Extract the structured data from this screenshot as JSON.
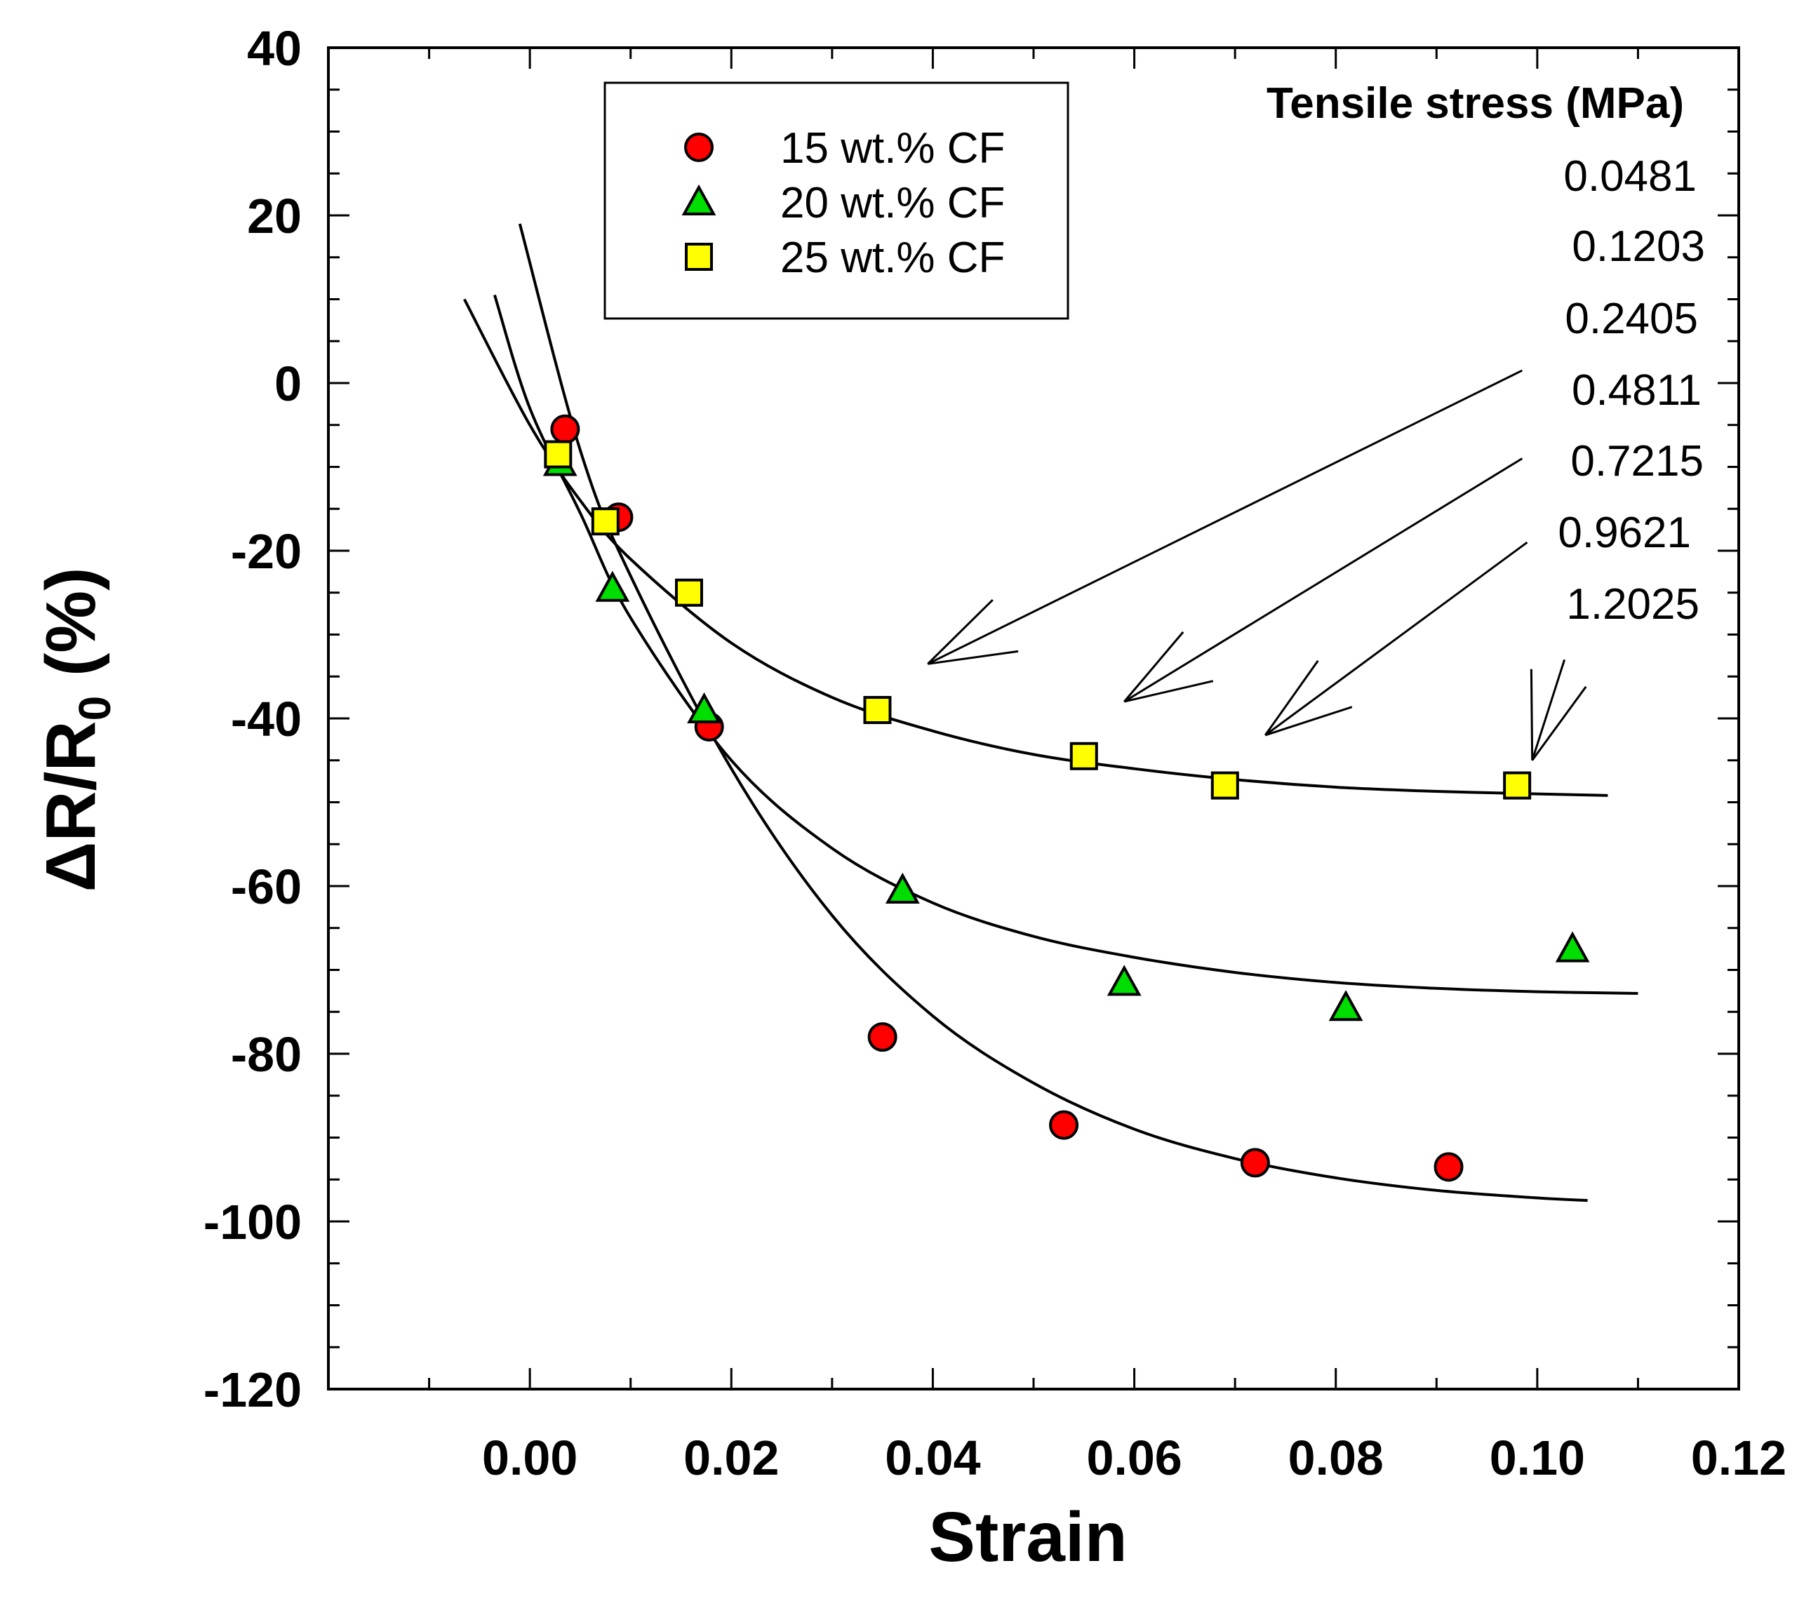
{
  "chart_data": {
    "type": "scatter",
    "xlabel": "Strain",
    "ylabel_main": "ΔR/R",
    "ylabel_sub": "0",
    "ylabel_tail": " (%)",
    "xlim": [
      -0.02,
      0.12
    ],
    "ylim": [
      -120,
      40
    ],
    "x_ticks": [
      "0.00",
      "0.02",
      "0.04",
      "0.06",
      "0.08",
      "0.10",
      "0.12"
    ],
    "y_ticks": [
      "40",
      "20",
      "0",
      "-20",
      "-40",
      "-60",
      "-80",
      "-100",
      "-120"
    ],
    "legend_position": "top-center",
    "series": [
      {
        "name": "15 wt.% CF",
        "marker": "circle",
        "color": "#ff0000",
        "points": [
          [
            0.0035,
            -5.5
          ],
          [
            0.0088,
            -16
          ],
          [
            0.0178,
            -41
          ],
          [
            0.035,
            -78
          ],
          [
            0.053,
            -88.5
          ],
          [
            0.072,
            -93
          ],
          [
            0.0912,
            -93.5
          ]
        ],
        "fit": [
          [
            -0.001,
            19
          ],
          [
            0.005,
            -8
          ],
          [
            0.01,
            -23
          ],
          [
            0.02,
            -46
          ],
          [
            0.03,
            -63.5
          ],
          [
            0.04,
            -75.5
          ],
          [
            0.05,
            -83.5
          ],
          [
            0.06,
            -89
          ],
          [
            0.07,
            -92.5
          ],
          [
            0.08,
            -94.8
          ],
          [
            0.09,
            -96.3
          ],
          [
            0.1,
            -97.2
          ],
          [
            0.105,
            -97.5
          ]
        ]
      },
      {
        "name": "20 wt.% CF",
        "marker": "triangle",
        "color": "#00dd00",
        "points": [
          [
            0.003,
            -9.5
          ],
          [
            0.0082,
            -24.5
          ],
          [
            0.0173,
            -39
          ],
          [
            0.037,
            -60.5
          ],
          [
            0.059,
            -71.5
          ],
          [
            0.081,
            -74.5
          ],
          [
            0.1035,
            -67.5
          ]
        ],
        "fit": [
          [
            -0.0035,
            10.5
          ],
          [
            0.0,
            -3
          ],
          [
            0.005,
            -15.5
          ],
          [
            0.01,
            -28
          ],
          [
            0.02,
            -45
          ],
          [
            0.03,
            -55.5
          ],
          [
            0.04,
            -62
          ],
          [
            0.05,
            -66
          ],
          [
            0.06,
            -68.5
          ],
          [
            0.07,
            -70.3
          ],
          [
            0.08,
            -71.5
          ],
          [
            0.09,
            -72.2
          ],
          [
            0.1,
            -72.6
          ],
          [
            0.11,
            -72.8
          ]
        ]
      },
      {
        "name": "25 wt.% CF",
        "marker": "square",
        "color": "#ffff00",
        "points": [
          [
            0.0028,
            -8.5
          ],
          [
            0.0075,
            -16.5
          ],
          [
            0.0158,
            -25
          ],
          [
            0.0345,
            -39
          ],
          [
            0.055,
            -44.5
          ],
          [
            0.069,
            -48
          ],
          [
            0.098,
            -48
          ]
        ],
        "fit": [
          [
            -0.0065,
            10
          ],
          [
            0.0,
            -5
          ],
          [
            0.005,
            -14
          ],
          [
            0.01,
            -21
          ],
          [
            0.02,
            -31
          ],
          [
            0.03,
            -37.5
          ],
          [
            0.04,
            -41.5
          ],
          [
            0.05,
            -44.3
          ],
          [
            0.06,
            -46
          ],
          [
            0.07,
            -47.3
          ],
          [
            0.08,
            -48.2
          ],
          [
            0.09,
            -48.7
          ],
          [
            0.1,
            -49
          ],
          [
            0.107,
            -49.2
          ]
        ]
      }
    ],
    "annotation": {
      "title": "Tensile stress (MPa)",
      "values": [
        "0.0481",
        "0.1203",
        "0.2405",
        "0.4811",
        "0.7215",
        "0.9621",
        "1.2025"
      ]
    },
    "arrows": [
      {
        "from": [
          0.0985,
          1.5
        ],
        "to": [
          0.0395,
          -33.5
        ]
      },
      {
        "from": [
          0.0985,
          -9
        ],
        "to": [
          0.059,
          -38
        ]
      },
      {
        "from": [
          0.099,
          -19
        ],
        "to": [
          0.073,
          -42
        ]
      },
      {
        "from": [
          0.1027,
          -33
        ],
        "to": [
          0.0995,
          -45
        ]
      }
    ]
  }
}
